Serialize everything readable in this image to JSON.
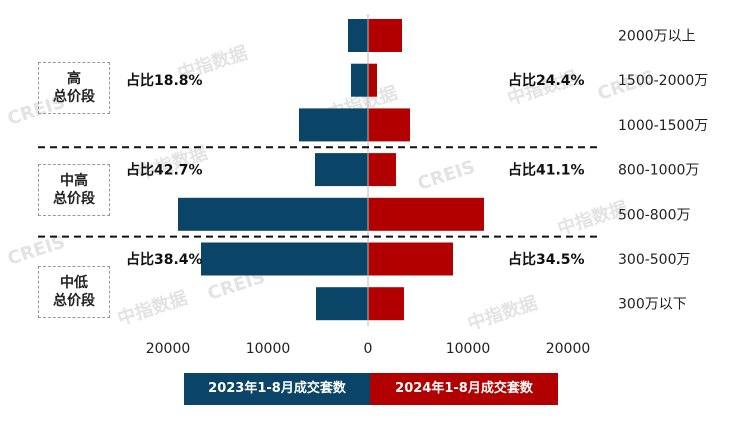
{
  "chart_data": {
    "type": "bar",
    "orientation": "horizontal-butterfly",
    "categories": [
      "2000万以上",
      "1500-2000万",
      "1000-1500万",
      "800-1000万",
      "500-800万",
      "300-500万",
      "300万以下"
    ],
    "series": [
      {
        "name": "2023年1-8月成交套数",
        "color": "#0a4466",
        "side": "left",
        "values": [
          2000,
          1700,
          6900,
          5300,
          19000,
          16700,
          5200
        ]
      },
      {
        "name": "2024年1-8月成交套数",
        "color": "#b20000",
        "side": "right",
        "values": [
          3400,
          900,
          4200,
          2800,
          11600,
          8500,
          3600
        ]
      }
    ],
    "xticks": [
      "20000",
      "10000",
      "0",
      "10000",
      "20000"
    ],
    "xlim": [
      -20000,
      20000
    ],
    "groups": [
      {
        "name_line1": "高",
        "name_line2": "总价段",
        "share_2023": "占比18.8%",
        "share_2024": "占比24.4%"
      },
      {
        "name_line1": "中高",
        "name_line2": "总价段",
        "share_2023": "占比42.7%",
        "share_2024": "占比41.1%"
      },
      {
        "name_line1": "中低",
        "name_line2": "总价段",
        "share_2023": "占比38.4%",
        "share_2024": "占比34.5%"
      }
    ],
    "watermark": [
      "中指数据",
      "CREIS"
    ]
  }
}
